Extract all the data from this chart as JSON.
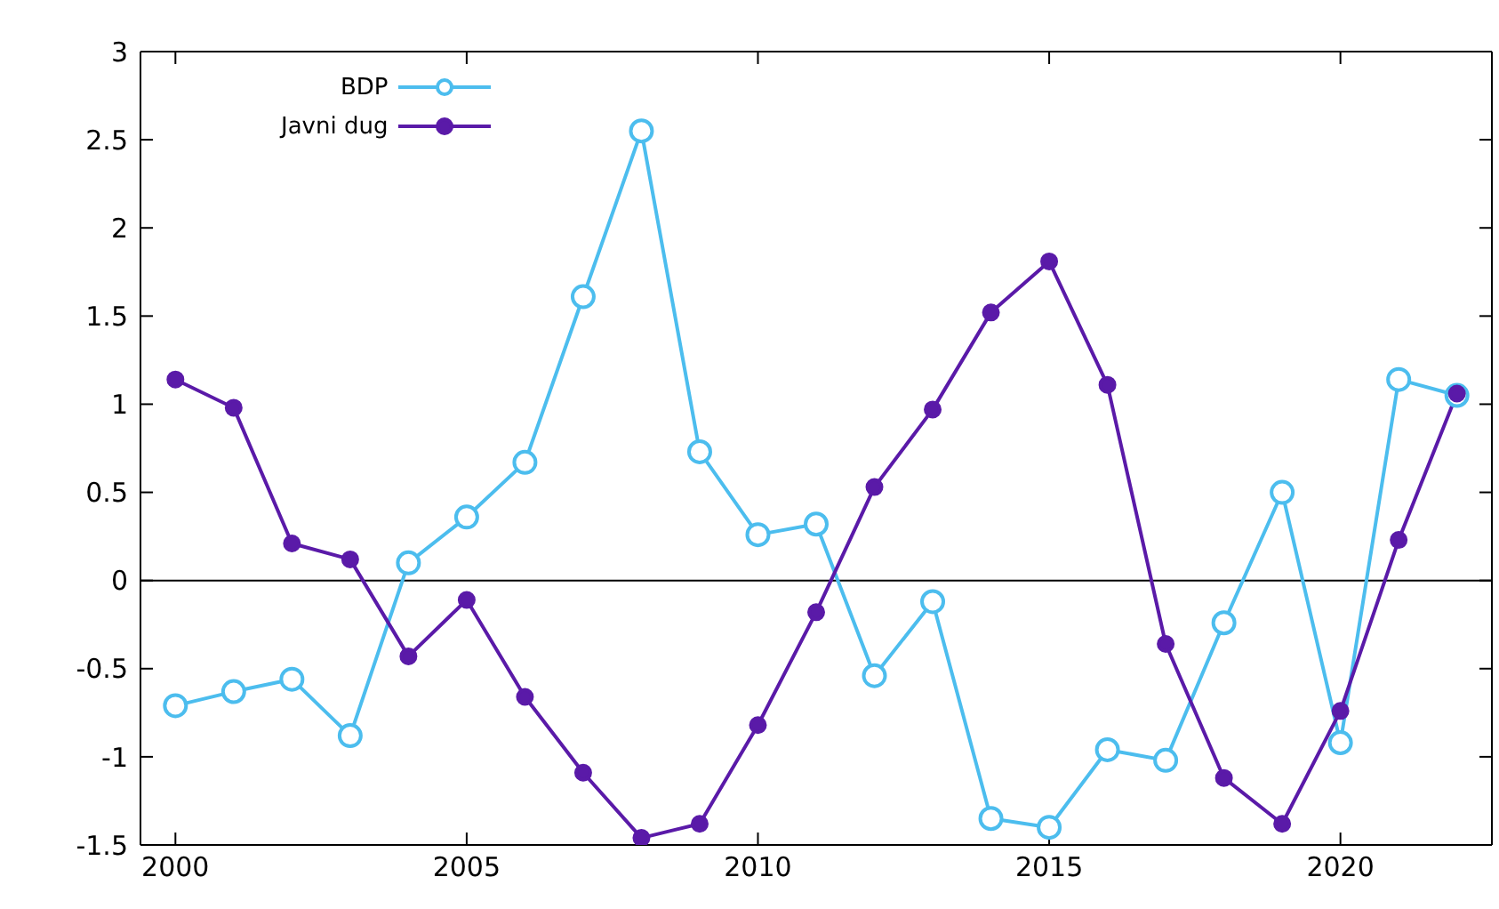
{
  "chart_data": {
    "type": "line",
    "x": [
      2000,
      2001,
      2002,
      2003,
      2004,
      2005,
      2006,
      2007,
      2008,
      2009,
      2010,
      2011,
      2012,
      2013,
      2014,
      2015,
      2016,
      2017,
      2018,
      2019,
      2020,
      2021,
      2022
    ],
    "series": [
      {
        "name": "BDP",
        "color": "#4cbdee",
        "values": [
          -0.71,
          -0.63,
          -0.56,
          -0.88,
          0.1,
          0.36,
          0.67,
          1.61,
          2.55,
          0.73,
          0.26,
          0.32,
          -0.54,
          -0.12,
          -1.35,
          -1.4,
          -0.96,
          -1.02,
          -0.24,
          0.5,
          -0.92,
          1.14,
          1.05
        ]
      },
      {
        "name": "Javni dug",
        "color": "#5a1aa8",
        "values": [
          1.14,
          0.98,
          0.21,
          0.12,
          -0.43,
          -0.11,
          -0.66,
          -1.09,
          -1.46,
          -1.38,
          -0.82,
          -0.18,
          0.53,
          0.97,
          1.52,
          1.81,
          1.11,
          -0.36,
          -1.12,
          -1.38,
          -0.74,
          0.23,
          1.06
        ]
      }
    ],
    "xlim": [
      1999.4,
      2022.6
    ],
    "xticks": [
      2000,
      2005,
      2010,
      2015,
      2020
    ],
    "ylim": [
      -1.5,
      3
    ],
    "yticks": [
      -1.5,
      -1,
      -0.5,
      0,
      0.5,
      1,
      1.5,
      2,
      2.5,
      3
    ],
    "ref_lines": [
      {
        "axis": "y",
        "value": 0,
        "color": "#000000"
      }
    ],
    "legend": "top left",
    "marker": "circle",
    "line_style": "solid",
    "grid": false
  }
}
